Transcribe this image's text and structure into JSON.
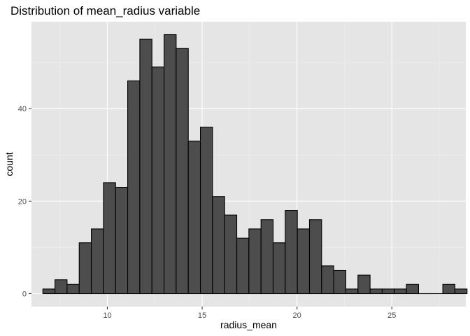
{
  "chart_data": {
    "type": "bar",
    "title": "Distribution of mean_radius variable",
    "xlabel": "radius_mean",
    "ylabel": "count",
    "xlim": [
      6.0,
      28.9
    ],
    "ylim": [
      -2.8,
      58.8
    ],
    "x_ticks": [
      10,
      15,
      20,
      25
    ],
    "y_ticks": [
      0,
      20,
      40
    ],
    "x_tick_labels": [
      "10",
      "15",
      "20",
      "25"
    ],
    "y_tick_labels": [
      "0",
      "20",
      "40"
    ],
    "bin_width": 0.639,
    "first_bin_start": 6.6,
    "values": [
      1,
      3,
      2,
      11,
      14,
      24,
      23,
      46,
      55,
      49,
      56,
      53,
      33,
      36,
      21,
      17,
      12,
      14,
      16,
      11,
      18,
      14,
      16,
      6,
      5,
      1,
      4,
      1,
      1,
      1,
      2,
      0,
      0,
      2,
      1
    ],
    "grid": true,
    "legend": "none",
    "colors": {
      "panel": "#e5e5e5",
      "grid_major": "#ffffff",
      "grid_minor": "#f2f2f2",
      "bar_fill": "#4d4d4d",
      "bar_stroke": "#000000",
      "tick_text": "#4d4d4d"
    }
  }
}
